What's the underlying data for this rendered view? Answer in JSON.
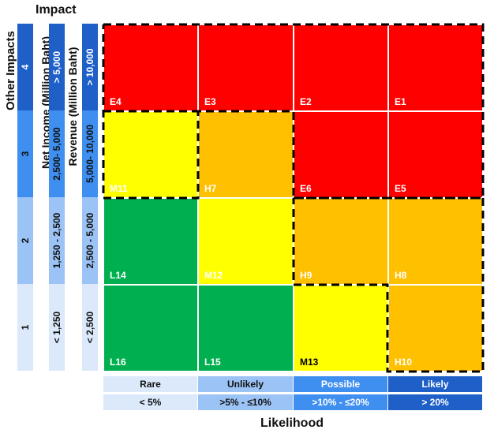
{
  "titles": {
    "impact": "Impact",
    "likelihood": "Likelihood"
  },
  "side_labels": {
    "other_impacts": "Other Impacts",
    "net_income": "Net Income (Million Baht)",
    "revenue": "Revenue (Million Baht)"
  },
  "impact_scale": {
    "other": [
      "4",
      "3",
      "2",
      "1"
    ],
    "net_income": [
      "> 5,000",
      "2,500- 5,000",
      "1,250 - 2,500",
      "< 1,250"
    ],
    "revenue": [
      "> 10,000",
      "5,000- 10,000",
      "2,500 - 5,000",
      "< 2,500"
    ]
  },
  "likelihood_scale": {
    "levels": [
      "Rare",
      "Unlikely",
      "Possible",
      "Likely"
    ],
    "ranges": [
      "< 5%",
      ">5% - ≤10%",
      ">10% - ≤20%",
      "> 20%"
    ]
  },
  "matrix_rows": [
    [
      {
        "code": "E4",
        "level": "extreme"
      },
      {
        "code": "E3",
        "level": "extreme"
      },
      {
        "code": "E2",
        "level": "extreme"
      },
      {
        "code": "E1",
        "level": "extreme"
      }
    ],
    [
      {
        "code": "M11",
        "level": "medium"
      },
      {
        "code": "H7",
        "level": "high"
      },
      {
        "code": "E6",
        "level": "extreme"
      },
      {
        "code": "E5",
        "level": "extreme"
      }
    ],
    [
      {
        "code": "L14",
        "level": "low"
      },
      {
        "code": "M12",
        "level": "medium"
      },
      {
        "code": "H9",
        "level": "high"
      },
      {
        "code": "H8",
        "level": "high"
      }
    ],
    [
      {
        "code": "L16",
        "level": "low"
      },
      {
        "code": "L15",
        "level": "low"
      },
      {
        "code": "M13",
        "level": "medium"
      },
      {
        "code": "H10",
        "level": "high"
      }
    ]
  ],
  "colors": {
    "extreme": "#ff0000",
    "high": "#ffc000",
    "medium": "#ffff00",
    "low": "#00b050",
    "impact_blues": [
      "#1e5fc8",
      "#3f8ff0",
      "#9cc3f5",
      "#dbe9fb"
    ],
    "likelihood_blues": [
      "#dbe9fb",
      "#9cc3f5",
      "#3f8ff0",
      "#1e5fc8"
    ]
  }
}
